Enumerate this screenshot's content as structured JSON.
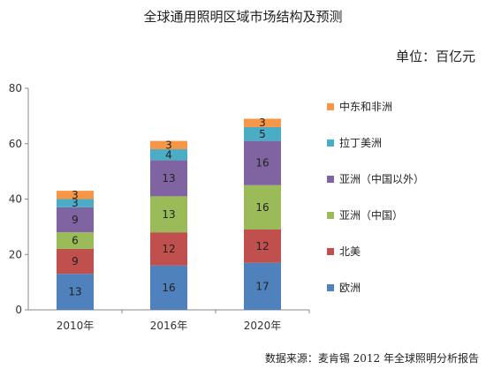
{
  "header": {
    "title": "全球通用照明区域市场结构及预测",
    "unit": "单位：百亿元"
  },
  "footer": {
    "source": "数据来源：麦肯锡 2012 年全球照明分析报告"
  },
  "chart_data": {
    "type": "bar",
    "stacked": true,
    "categories": [
      "2010年",
      "2016年",
      "2020年"
    ],
    "series": [
      {
        "name": "欧洲",
        "color": "#4f81bd",
        "values": [
          13,
          16,
          17
        ]
      },
      {
        "name": "北美",
        "color": "#c0504d",
        "values": [
          9,
          12,
          12
        ]
      },
      {
        "name": "亚洲（中国）",
        "color": "#9bbb59",
        "values": [
          6,
          13,
          16
        ]
      },
      {
        "name": "亚洲（中国以外）",
        "color": "#8064a2",
        "values": [
          9,
          13,
          16
        ]
      },
      {
        "name": "拉丁美洲",
        "color": "#4bacc6",
        "values": [
          3,
          4,
          5
        ]
      },
      {
        "name": "中东和非洲",
        "color": "#f79646",
        "values": [
          3,
          3,
          3
        ]
      }
    ],
    "ylim": [
      0,
      80
    ],
    "yticks": [
      0,
      20,
      40,
      60,
      80
    ],
    "legend_position": "right",
    "grid": false
  }
}
